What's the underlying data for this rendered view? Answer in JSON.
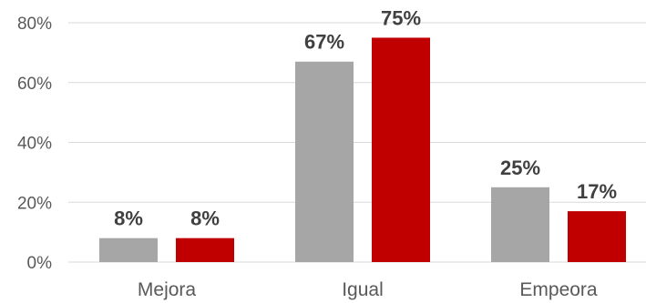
{
  "chart_data": {
    "type": "bar",
    "title": "",
    "xlabel": "",
    "ylabel": "",
    "categories": [
      "Mejora",
      "Igual",
      "Empeora"
    ],
    "series": [
      {
        "values": [
          8,
          67,
          25
        ],
        "labels": [
          "8%",
          "67%",
          "25%"
        ],
        "color": "#a6a6a6"
      },
      {
        "values": [
          8,
          75,
          17
        ],
        "labels": [
          "8%",
          "75%",
          "17%"
        ],
        "color": "#c00000"
      }
    ],
    "ylim": [
      0,
      80
    ],
    "yticks": [
      0,
      20,
      40,
      60,
      80
    ],
    "ytick_labels": [
      "0%",
      "20%",
      "40%",
      "60%",
      "80%"
    ],
    "y_unit": "percent",
    "grid": true,
    "grid_color": "#d9d9d9",
    "legend": "none"
  }
}
